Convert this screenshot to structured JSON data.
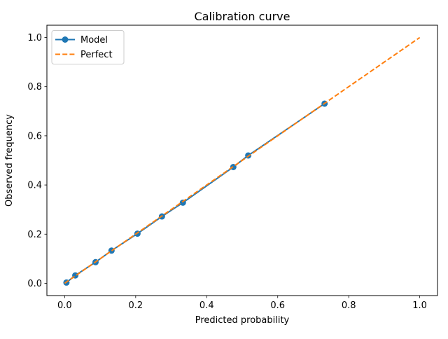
{
  "chart_data": {
    "type": "line",
    "title": "Calibration curve",
    "xlabel": "Predicted probability",
    "ylabel": "Observed frequency",
    "xlim": [
      -0.05,
      1.05
    ],
    "ylim": [
      -0.05,
      1.05
    ],
    "xticks": [
      0.0,
      0.2,
      0.4,
      0.6,
      0.8,
      1.0
    ],
    "yticks": [
      0.0,
      0.2,
      0.4,
      0.6,
      0.8,
      1.0
    ],
    "grid": false,
    "legend": {
      "position": "upper-left"
    },
    "colors": {
      "model": "#1f77b4",
      "perfect": "#ff7f0e",
      "spine": "#000000",
      "legend_border": "#cccccc"
    },
    "series": [
      {
        "name": "Model",
        "color": "#1f77b4",
        "line_style": "solid",
        "marker": "circle",
        "x": [
          0.005,
          0.03,
          0.087,
          0.132,
          0.205,
          0.274,
          0.333,
          0.475,
          0.517,
          0.732
        ],
        "y": [
          0.003,
          0.032,
          0.086,
          0.133,
          0.202,
          0.272,
          0.328,
          0.473,
          0.52,
          0.731
        ]
      },
      {
        "name": "Perfect",
        "color": "#ff7f0e",
        "line_style": "dashed",
        "marker": "none",
        "x": [
          0.0,
          1.0
        ],
        "y": [
          0.0,
          1.0
        ]
      }
    ]
  }
}
